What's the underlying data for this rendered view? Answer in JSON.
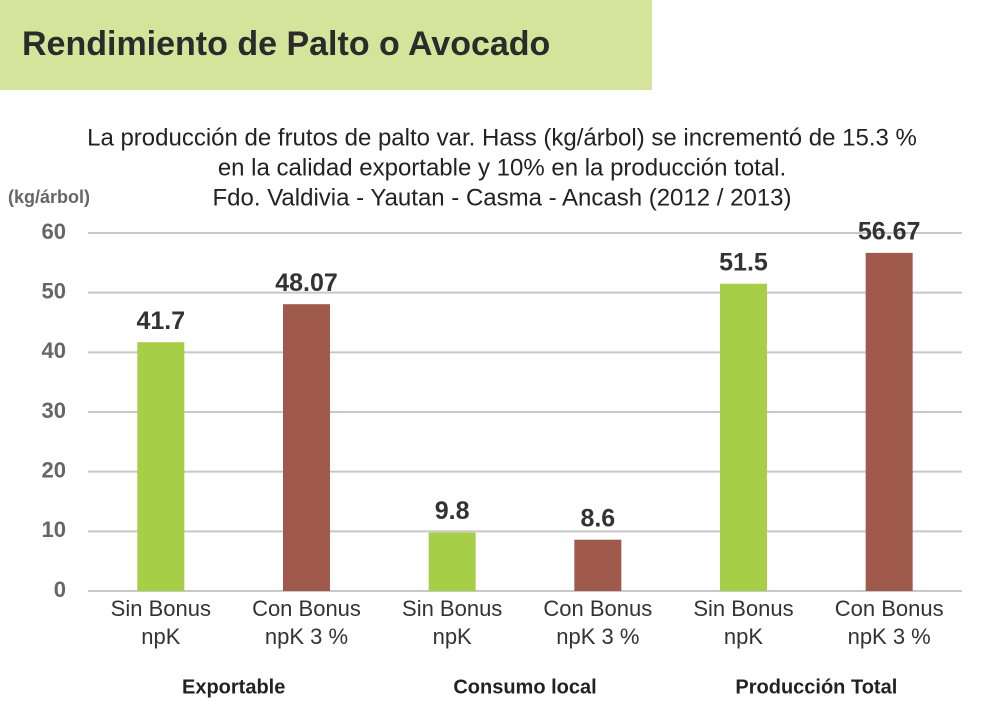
{
  "chart_data": {
    "type": "bar",
    "title": "Rendimiento de Palto o Avocado",
    "subtitle": [
      "La producción de frutos de palto var. Hass (kg/árbol) se incrementó de 15.3 %",
      "en la calidad exportable y 10% en la producción total.",
      "Fdo. Valdivia - Yautan - Casma - Ancash (2012 / 2013)"
    ],
    "y_label": "(kg/árbol)",
    "categories": [
      [
        "Sin Bonus",
        "npK"
      ],
      [
        "Con Bonus",
        "npK 3 %"
      ],
      [
        "Sin Bonus",
        "npK"
      ],
      [
        "Con Bonus",
        "npK 3 %"
      ],
      [
        "Sin Bonus",
        "npK"
      ],
      [
        "Con Bonus",
        "npK 3 %"
      ]
    ],
    "groups": [
      "Exportable",
      "Consumo local",
      "Producción Total"
    ],
    "values": [
      41.7,
      48.07,
      9.8,
      8.6,
      51.5,
      56.67
    ],
    "colors": [
      "#a6ce46",
      "#a05a4c",
      "#a6ce46",
      "#a05a4c",
      "#a6ce46",
      "#a05a4c"
    ],
    "ylim": [
      0,
      60
    ],
    "yticks": [
      0,
      10,
      20,
      30,
      40,
      50,
      60
    ],
    "grid": true
  }
}
